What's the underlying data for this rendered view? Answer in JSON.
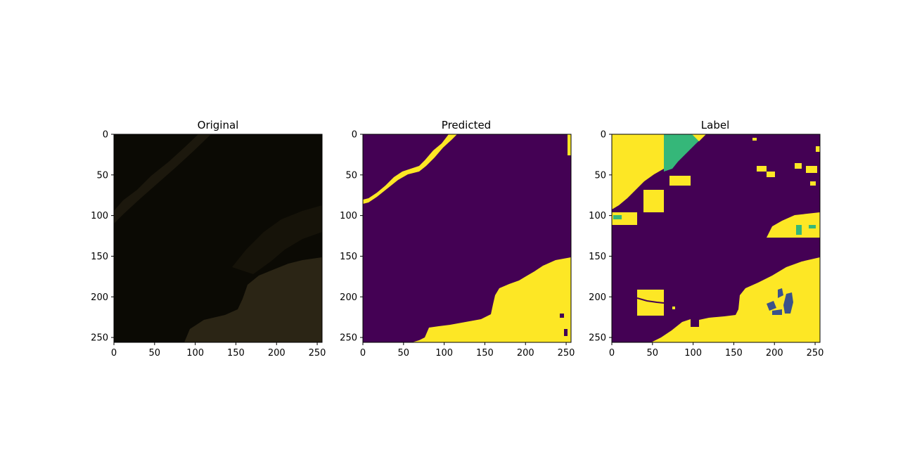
{
  "panels": [
    {
      "title": "Original",
      "kind": "photo",
      "x_ticks": [
        0,
        50,
        100,
        150,
        200,
        250
      ],
      "y_ticks": [
        0,
        50,
        100,
        150,
        200,
        250
      ],
      "extent": [
        0,
        256
      ]
    },
    {
      "title": "Predicted",
      "kind": "segmentation",
      "x_ticks": [
        0,
        50,
        100,
        150,
        200,
        250
      ],
      "y_ticks": [
        0,
        50,
        100,
        150,
        200,
        250
      ],
      "extent": [
        0,
        256
      ]
    },
    {
      "title": "Label",
      "kind": "segmentation",
      "x_ticks": [
        0,
        50,
        100,
        150,
        200,
        250
      ],
      "y_ticks": [
        0,
        50,
        100,
        150,
        200,
        250
      ],
      "extent": [
        0,
        256
      ]
    }
  ],
  "colors": {
    "class_background": "#440154",
    "class_a": "#fde725",
    "class_b": "#35b779",
    "class_c": "#3b528b",
    "photo_dark": "#0b0a04",
    "photo_land": "#2b2515"
  }
}
